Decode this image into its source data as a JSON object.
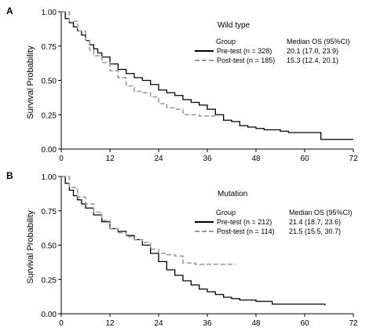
{
  "chart_data": [
    {
      "type": "line",
      "panel_label": "A",
      "title": "Wild type",
      "ylabel": "Survival Probability",
      "xlabel": "",
      "xlim": [
        0,
        72
      ],
      "ylim": [
        0,
        1
      ],
      "x_ticks": [
        "0",
        "12",
        "24",
        "36",
        "48",
        "60",
        "72"
      ],
      "y_ticks": [
        "0.00",
        "0.25",
        "0.50",
        "0.75",
        "1.00"
      ],
      "legend": {
        "group_header": "Group",
        "stat_header": "Median OS (95%CI)",
        "placement": "right"
      },
      "series": [
        {
          "name": "Pre-test (n = 328)",
          "median": "20.1 (17.0, 23.9)",
          "color": "#000000",
          "style": "solid",
          "points": [
            [
              0,
              1
            ],
            [
              1,
              0.95
            ],
            [
              2,
              0.92
            ],
            [
              3,
              0.89
            ],
            [
              4,
              0.86
            ],
            [
              5,
              0.83
            ],
            [
              6,
              0.79
            ],
            [
              7,
              0.76
            ],
            [
              8,
              0.73
            ],
            [
              9,
              0.7
            ],
            [
              10,
              0.67
            ],
            [
              12,
              0.62
            ],
            [
              14,
              0.58
            ],
            [
              16,
              0.55
            ],
            [
              18,
              0.52
            ],
            [
              20,
              0.5
            ],
            [
              22,
              0.47
            ],
            [
              24,
              0.43
            ],
            [
              26,
              0.41
            ],
            [
              28,
              0.39
            ],
            [
              30,
              0.36
            ],
            [
              32,
              0.34
            ],
            [
              34,
              0.32
            ],
            [
              36,
              0.29
            ],
            [
              38,
              0.25
            ],
            [
              40,
              0.21
            ],
            [
              42,
              0.2
            ],
            [
              44,
              0.17
            ],
            [
              46,
              0.16
            ],
            [
              48,
              0.15
            ],
            [
              50,
              0.14
            ],
            [
              54,
              0.13
            ],
            [
              56,
              0.12
            ],
            [
              63,
              0.12
            ],
            [
              64,
              0.07
            ],
            [
              72,
              0.07
            ]
          ]
        },
        {
          "name": "Post-test (n = 185)",
          "median": "15.3 (12.4, 20.1)",
          "color": "#999999",
          "style": "dashed",
          "points": [
            [
              0,
              1
            ],
            [
              2,
              0.93
            ],
            [
              4,
              0.86
            ],
            [
              6,
              0.79
            ],
            [
              7,
              0.72
            ],
            [
              8,
              0.68
            ],
            [
              10,
              0.63
            ],
            [
              12,
              0.57
            ],
            [
              14,
              0.52
            ],
            [
              16,
              0.46
            ],
            [
              18,
              0.42
            ],
            [
              20,
              0.41
            ],
            [
              22,
              0.38
            ],
            [
              24,
              0.33
            ],
            [
              26,
              0.3
            ],
            [
              28,
              0.29
            ],
            [
              30,
              0.25
            ],
            [
              34,
              0.24
            ],
            [
              38,
              0.24
            ]
          ]
        }
      ]
    },
    {
      "type": "line",
      "panel_label": "B",
      "title": "Mutation",
      "ylabel": "Survival Probability",
      "xlabel": "",
      "xlim": [
        0,
        72
      ],
      "ylim": [
        0,
        1
      ],
      "x_ticks": [
        "0",
        "12",
        "24",
        "36",
        "48",
        "60",
        "72"
      ],
      "y_ticks": [
        "0.00",
        "0.25",
        "0.50",
        "0.75",
        "1.00"
      ],
      "legend": {
        "group_header": "Group",
        "stat_header": "Median OS (95%CI)",
        "placement": "right"
      },
      "series": [
        {
          "name": "Pre-test (n = 212)",
          "median": "21.4 (18.7, 23.6)",
          "color": "#000000",
          "style": "solid",
          "points": [
            [
              0,
              1
            ],
            [
              1,
              0.95
            ],
            [
              2,
              0.9
            ],
            [
              3,
              0.86
            ],
            [
              4,
              0.83
            ],
            [
              5,
              0.8
            ],
            [
              6,
              0.77
            ],
            [
              8,
              0.72
            ],
            [
              10,
              0.67
            ],
            [
              12,
              0.62
            ],
            [
              14,
              0.6
            ],
            [
              16,
              0.57
            ],
            [
              18,
              0.54
            ],
            [
              20,
              0.5
            ],
            [
              22,
              0.44
            ],
            [
              24,
              0.38
            ],
            [
              26,
              0.32
            ],
            [
              28,
              0.28
            ],
            [
              30,
              0.24
            ],
            [
              32,
              0.21
            ],
            [
              34,
              0.18
            ],
            [
              36,
              0.16
            ],
            [
              38,
              0.14
            ],
            [
              40,
              0.12
            ],
            [
              42,
              0.11
            ],
            [
              44,
              0.1
            ],
            [
              46,
              0.1
            ],
            [
              48,
              0.09
            ],
            [
              52,
              0.07
            ],
            [
              65,
              0.06
            ]
          ]
        },
        {
          "name": "Post-test (n = 114)",
          "median": "21.5 (15.5, 30.7)",
          "color": "#999999",
          "style": "dashed",
          "points": [
            [
              0,
              1
            ],
            [
              2,
              0.92
            ],
            [
              4,
              0.85
            ],
            [
              6,
              0.8
            ],
            [
              8,
              0.74
            ],
            [
              10,
              0.68
            ],
            [
              12,
              0.62
            ],
            [
              14,
              0.59
            ],
            [
              16,
              0.56
            ],
            [
              18,
              0.54
            ],
            [
              20,
              0.52
            ],
            [
              22,
              0.47
            ],
            [
              24,
              0.44
            ],
            [
              26,
              0.43
            ],
            [
              28,
              0.42
            ],
            [
              30,
              0.37
            ],
            [
              33,
              0.36
            ],
            [
              43,
              0.36
            ]
          ]
        }
      ]
    }
  ]
}
